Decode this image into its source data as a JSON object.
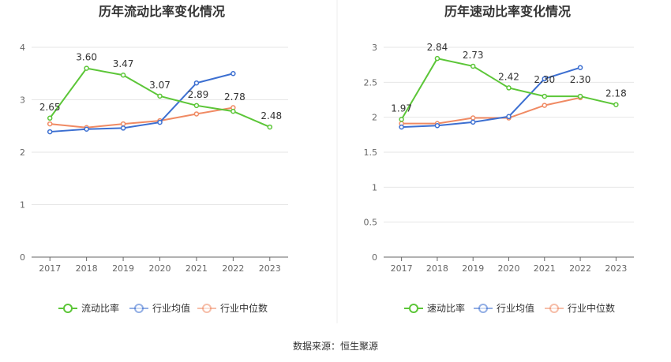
{
  "source_label": "数据来源：恒生聚源",
  "colors": {
    "series1": "#5cc638",
    "series2": "#3c6fd1",
    "series3": "#f08a63"
  },
  "chart_data": [
    {
      "type": "line",
      "title": "历年流动比率变化情况",
      "x": [
        "2017",
        "2018",
        "2019",
        "2020",
        "2021",
        "2022",
        "2023"
      ],
      "ylim": [
        0,
        4
      ],
      "yticks": [
        0,
        1,
        2,
        3,
        4
      ],
      "grid": true,
      "legend": "bottom",
      "series": [
        {
          "name": "流动比率",
          "values": [
            2.65,
            3.6,
            3.47,
            3.07,
            2.89,
            2.78,
            2.48
          ],
          "labels": [
            "2.65",
            "3.60",
            "3.47",
            "3.07",
            "2.89",
            "2.78",
            "2.48"
          ]
        },
        {
          "name": "行业均值",
          "values": [
            2.39,
            2.44,
            2.46,
            2.57,
            3.32,
            3.5,
            null
          ]
        },
        {
          "name": "行业中位数",
          "values": [
            2.54,
            2.47,
            2.54,
            2.6,
            2.73,
            2.85,
            null
          ]
        }
      ]
    },
    {
      "type": "line",
      "title": "历年速动比率变化情况",
      "x": [
        "2017",
        "2018",
        "2019",
        "2020",
        "2021",
        "2022",
        "2023"
      ],
      "ylim": [
        0,
        3
      ],
      "yticks": [
        "0",
        "0.5",
        "1",
        "1.5",
        "2",
        "2.5",
        "3"
      ],
      "grid": true,
      "legend": "bottom",
      "series": [
        {
          "name": "速动比率",
          "values": [
            1.97,
            2.84,
            2.73,
            2.42,
            2.3,
            2.3,
            2.18
          ],
          "labels": [
            "1.97",
            "2.84",
            "2.73",
            "2.42",
            "2.30",
            "2.30",
            "2.18"
          ]
        },
        {
          "name": "行业均值",
          "values": [
            1.86,
            1.88,
            1.93,
            2.01,
            2.55,
            2.71,
            null
          ]
        },
        {
          "name": "行业中位数",
          "values": [
            1.91,
            1.91,
            1.99,
            1.99,
            2.17,
            2.28,
            null
          ]
        }
      ]
    }
  ]
}
